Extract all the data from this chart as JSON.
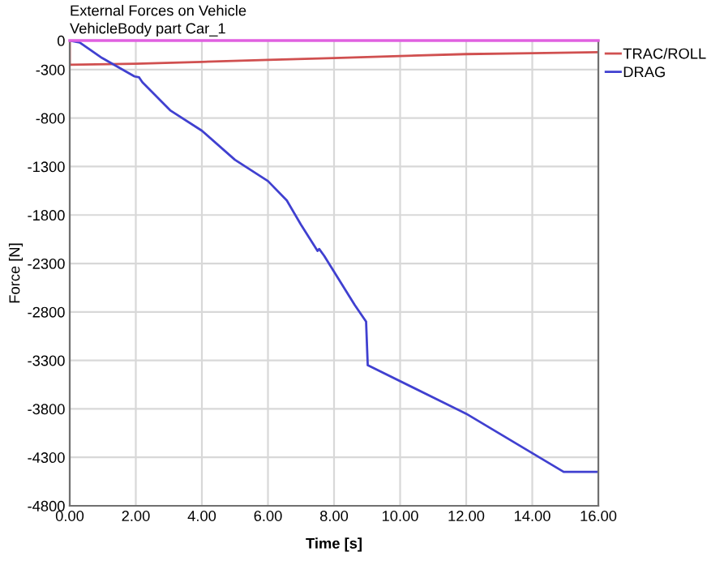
{
  "chart_data": {
    "type": "line",
    "title": "External Forces on Vehicle",
    "subtitle": "VehicleBody part Car_1",
    "xlabel": "Time [s]",
    "ylabel": "Force [N]",
    "series": [
      {
        "name": "TRAC/ROLL",
        "color": "#d05050",
        "x": [
          0,
          0,
          2,
          4,
          6,
          8,
          9,
          10,
          12,
          14,
          16
        ],
        "values": [
          0,
          -250,
          -240,
          -220,
          -200,
          -180,
          -170,
          -160,
          -140,
          -130,
          -120
        ]
      },
      {
        "name": "DRAG",
        "color": "#4040d0",
        "x": [
          0,
          0.3,
          0.98,
          1.96,
          2.1,
          2.2,
          3.04,
          4.0,
          5.0,
          6.0,
          6.57,
          7.0,
          7.5,
          7.55,
          7.7,
          8.63,
          8.97,
          9.02,
          12.0,
          14.95,
          16
        ],
        "values": [
          0,
          -20,
          -180,
          -370,
          -380,
          -430,
          -720,
          -930,
          -1230,
          -1450,
          -1650,
          -1900,
          -2170,
          -2150,
          -2220,
          -2730,
          -2900,
          -3350,
          -3850,
          -4450,
          -4450
        ]
      }
    ],
    "ref_lines": [
      {
        "axis": "y",
        "value": 0,
        "color": "#e060e0"
      }
    ],
    "xlim": [
      0,
      16
    ],
    "xticks": [
      {
        "value": 0,
        "label": "0.00"
      },
      {
        "value": 2,
        "label": "2.00"
      },
      {
        "value": 4,
        "label": "4.00"
      },
      {
        "value": 6,
        "label": "6.00"
      },
      {
        "value": 8,
        "label": "8.00"
      },
      {
        "value": 10,
        "label": "10.00"
      },
      {
        "value": 12,
        "label": "12.00"
      },
      {
        "value": 14,
        "label": "14.00"
      },
      {
        "value": 16,
        "label": "16.00"
      }
    ],
    "ylim": [
      -4800,
      0
    ],
    "yticks": [
      0,
      -300,
      -800,
      -1300,
      -1800,
      -2300,
      -2800,
      -3300,
      -3800,
      -4300,
      -4800
    ],
    "grid": true,
    "legend": "top right",
    "marker": "none",
    "line_style": "solid"
  }
}
